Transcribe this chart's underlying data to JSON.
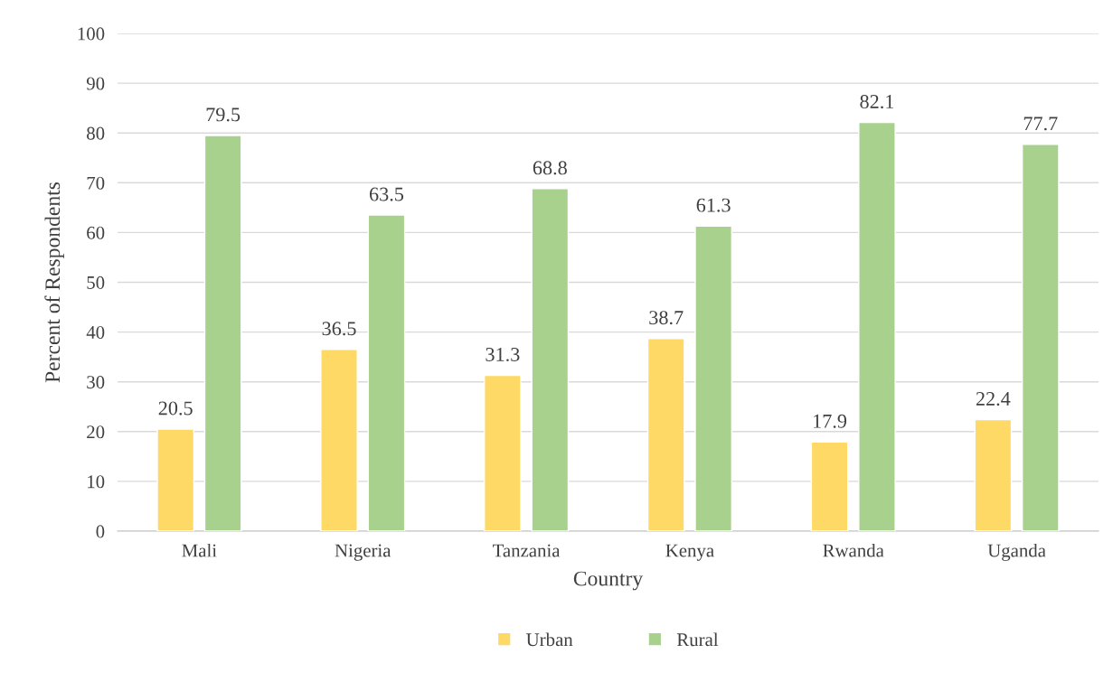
{
  "chart_data": {
    "type": "bar",
    "xlabel": "Country",
    "ylabel": "Percent of Respondents",
    "categories": [
      "Mali",
      "Nigeria",
      "Tanzania",
      "Kenya",
      "Rwanda",
      "Uganda"
    ],
    "series": [
      {
        "name": "Urban",
        "color": "#ffd966",
        "values": [
          20.5,
          36.5,
          31.3,
          38.7,
          17.9,
          22.4
        ]
      },
      {
        "name": "Rural",
        "color": "#a9d18e",
        "values": [
          79.5,
          63.5,
          68.8,
          61.3,
          82.1,
          77.7
        ]
      }
    ],
    "ylim": [
      0,
      100
    ],
    "yticks": [
      0,
      10,
      20,
      30,
      40,
      50,
      60,
      70,
      80,
      90,
      100
    ],
    "grid": "y",
    "legend": "bottom",
    "data_labels": true
  }
}
